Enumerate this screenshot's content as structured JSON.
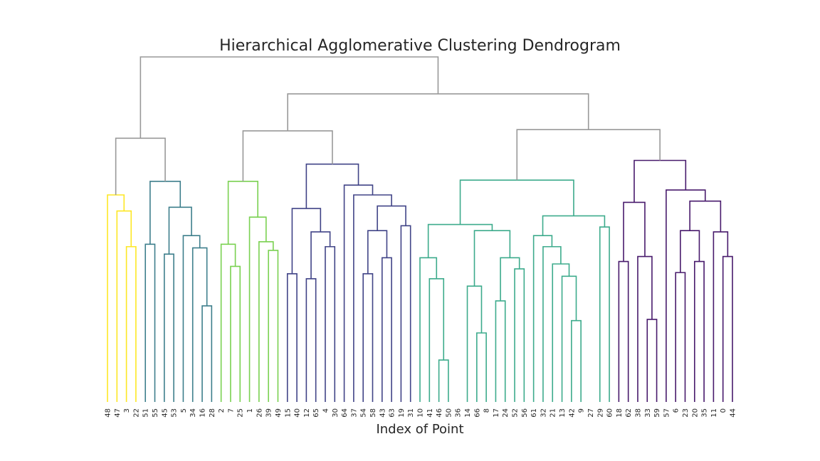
{
  "chart_data": {
    "type": "dendrogram",
    "title": "Hierarchical Agglomerative Clustering Dendrogram",
    "xlabel": "Index of Point",
    "ylabel": "",
    "grid": false,
    "leaves": [
      "48",
      "47",
      "3",
      "22",
      "51",
      "55",
      "45",
      "53",
      "5",
      "34",
      "16",
      "28",
      "2",
      "7",
      "25",
      "1",
      "26",
      "39",
      "49",
      "15",
      "40",
      "12",
      "65",
      "4",
      "30",
      "64",
      "37",
      "54",
      "58",
      "43",
      "63",
      "19",
      "31",
      "10",
      "41",
      "46",
      "50",
      "36",
      "14",
      "66",
      "8",
      "17",
      "24",
      "52",
      "56",
      "61",
      "32",
      "21",
      "13",
      "42",
      "9",
      "27",
      "29",
      "60",
      "18",
      "62",
      "38",
      "33",
      "59",
      "57",
      "6",
      "23",
      "20",
      "35",
      "11",
      "0",
      "44"
    ],
    "above_threshold_color": "#999999",
    "links": [
      {
        "l": 0,
        "r": 1,
        "h": 6.5,
        "c": "#fde725"
      },
      {
        "l": 2,
        "r": 3,
        "h": 5.5,
        "c": "#fde725"
      },
      {
        "l": 5,
        "r": 6,
        "h": 6.3,
        "c": "#fde725"
      },
      {
        "l": 4,
        "r": 7,
        "h": 7.0,
        "c": "#fde725"
      },
      {
        "l": 0,
        "r": 1,
        "h": 5.5,
        "c": "#3e7f8c"
      },
      {
        "l": 2,
        "r": 3,
        "h": 5.2,
        "c": "#3e7f8c"
      },
      {
        "l": 10,
        "r": 11,
        "h": 3.4,
        "c": "#3e7f8c"
      },
      {
        "l": 9,
        "r": 12,
        "h": 5.1,
        "c": "#3e7f8c"
      },
      {
        "l": 8,
        "r": 13,
        "h": 5.6,
        "c": "#3e7f8c"
      },
      {
        "l": 6,
        "r": 14,
        "h": 6.6,
        "c": "#3e7f8c"
      },
      {
        "l": 4,
        "r": 15,
        "h": 7.5,
        "c": "#3e7f8c"
      },
      {
        "l": 1,
        "r": 2,
        "h": 4.7,
        "c": "#7ad151"
      },
      {
        "l": 0,
        "r": 3,
        "h": 5.5,
        "c": "#7ad151"
      },
      {
        "l": 5,
        "r": 6,
        "h": 5.0,
        "c": "#7ad151"
      },
      {
        "l": 4,
        "r": 7,
        "h": 5.4,
        "c": "#7ad151"
      },
      {
        "l": 8,
        "r": 9,
        "h": 6.1,
        "c": "#7ad151"
      },
      {
        "l": 10,
        "r": 11,
        "h": 7.4,
        "c": "#7ad151"
      },
      {
        "l": 0,
        "r": 1,
        "h": 4.5,
        "c": "#414487"
      },
      {
        "l": 2,
        "r": 3,
        "h": 4.4,
        "c": "#414487"
      },
      {
        "l": 4,
        "r": 5,
        "h": 5.2,
        "c": "#414487"
      },
      {
        "l": 6,
        "r": 7,
        "h": 5.9,
        "c": "#414487"
      },
      {
        "l": 8,
        "r": 9,
        "h": 6.4,
        "c": "#414487"
      },
      {
        "l": 0,
        "r": 1,
        "h": 4.5,
        "c": "#414487"
      },
      {
        "l": 2,
        "r": 3,
        "h": 4.9,
        "c": "#414487"
      },
      {
        "l": 4,
        "r": 5,
        "h": 5.9,
        "c": "#414487"
      },
      {
        "l": 6,
        "r": 7,
        "h": 6.2,
        "c": "#414487"
      },
      {
        "l": 8,
        "r": 9,
        "h": 6.8,
        "c": "#414487"
      },
      {
        "l": 10,
        "r": 11,
        "h": 7.2,
        "c": "#414487"
      },
      {
        "l": 12,
        "r": 13,
        "h": 8.1,
        "c": "#414487"
      }
    ]
  }
}
